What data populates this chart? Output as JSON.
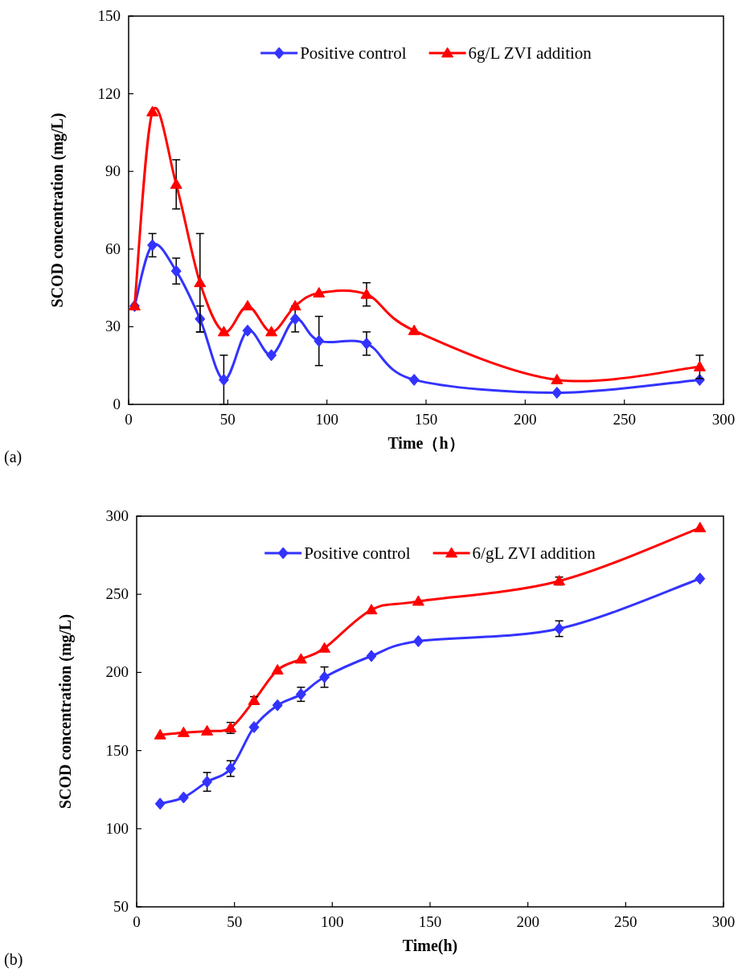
{
  "chart_data": [
    {
      "type": "line",
      "xlabel": "Time（h）",
      "ylabel": "SCOD concentration (mg/L)",
      "annotations": [
        "(a)"
      ],
      "xlim": [
        0,
        300
      ],
      "xticks": [
        0,
        50,
        100,
        150,
        200,
        250,
        300
      ],
      "ylim": [
        0,
        150
      ],
      "yticks": [
        0,
        30,
        60,
        90,
        120,
        150
      ],
      "legend": "top",
      "x": [
        3,
        12,
        24,
        36,
        48,
        60,
        72,
        84,
        96,
        120,
        144,
        216,
        288
      ],
      "series": [
        {
          "name": "Positive control",
          "color": "#3333ff",
          "marker": "diamond",
          "values": [
            38,
            61.5,
            51.5,
            33,
            9.5,
            28.5,
            19,
            33,
            24.5,
            23.5,
            9.5,
            4.5,
            9.5
          ],
          "errors": [
            null,
            4.5,
            5,
            5,
            9.5,
            null,
            null,
            5,
            9.5,
            4.5,
            null,
            null,
            null
          ]
        },
        {
          "name": "6g/L ZVI addition",
          "color": "#ff0000",
          "marker": "triangle",
          "values": [
            38,
            113,
            85,
            47,
            28,
            38,
            28,
            38,
            43,
            42.5,
            28.5,
            9.5,
            14.5
          ],
          "errors": [
            null,
            null,
            9.5,
            19,
            null,
            null,
            null,
            null,
            null,
            4.5,
            null,
            null,
            4.5
          ]
        }
      ]
    },
    {
      "type": "line",
      "xlabel": "Time(h)",
      "ylabel": "SCOD concentration (mg/L)",
      "annotations": [
        "(b)"
      ],
      "xlim": [
        0,
        300
      ],
      "xticks": [
        0,
        50,
        100,
        150,
        200,
        250,
        300
      ],
      "ylim": [
        50,
        300
      ],
      "yticks": [
        50,
        100,
        150,
        200,
        250,
        300
      ],
      "legend": "top",
      "x": [
        12,
        24,
        36,
        48,
        60,
        72,
        84,
        96,
        120,
        144,
        216,
        288
      ],
      "series": [
        {
          "name": "Positive control",
          "color": "#3333ff",
          "marker": "diamond",
          "values": [
            116,
            120,
            130,
            138.5,
            165,
            179,
            186,
            197,
            210.5,
            220,
            228,
            260
          ],
          "errors": [
            null,
            null,
            6,
            5,
            null,
            null,
            4.5,
            6.5,
            null,
            null,
            5,
            null
          ]
        },
        {
          "name": "6/gL ZVI addition",
          "color": "#ff0000",
          "marker": "triangle",
          "values": [
            160,
            161.5,
            162.5,
            164.5,
            182,
            201.5,
            208.5,
            215.5,
            240,
            245.5,
            258.5,
            292.5
          ],
          "errors": [
            null,
            null,
            null,
            3.5,
            2.5,
            null,
            null,
            null,
            null,
            null,
            2.5,
            null
          ]
        }
      ]
    }
  ]
}
